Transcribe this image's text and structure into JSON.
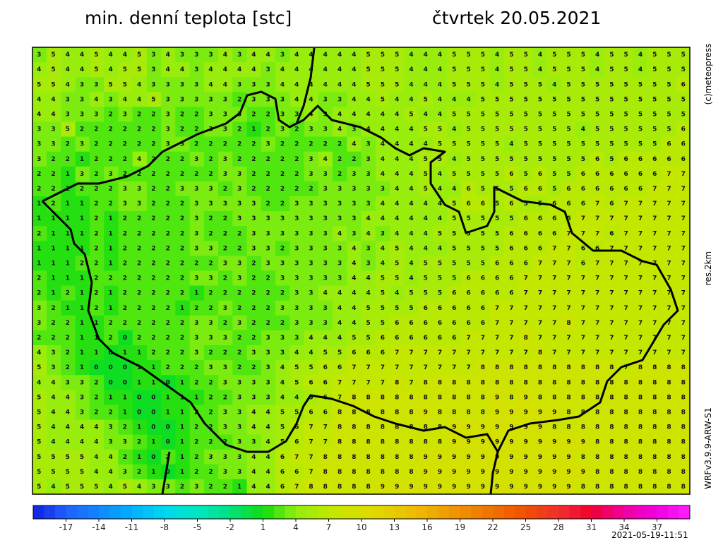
{
  "header": {
    "title": "min. denní teplota [stc]",
    "date": "čtvrtek 20.05.2021"
  },
  "side_labels": {
    "copyright": "(c)meteopress",
    "resolution": "res.2km",
    "model": "WRFv3.9.9-ARW-S1"
  },
  "footer": {
    "timestamp": "2021-05-19-11:51"
  },
  "grid": {
    "rows": [
      "3544544534333434434444455544455545545554554555",
      "4544545534434444344444455544455545545554554555",
      "5543355433334433344444455544455545554555555556",
      "4433434453333323334433445445444555555555555555",
      "4433323223223332233434444454455555555555555555",
      "3352222223223321232334344445545555555545555556",
      "3323222223322222322222434444555554555555555566",
      "3221222422232322222342234445545555555556566666",
      "2213232222222332222332334445455556565566666677",
      "2212223322333232222233333445446555665666666777",
      "1211223322233333223333334444456656556667677777",
      "1111212222232233333333344444455555666677777777",
      "2111212222232223333334343444555556666777677777",
      "1111212222233223323333434544455556667766777777",
      "1112212222222332333333434545555566677767777777",
      "2111222222233232233333445545556666777777777777",
      "2121212222212222223344445455566666777777777777",
      "3211212222122322233334455556666677777777777777",
      "3221122222233232223334455666666677777877777777",
      "2221120222233322333444556666667777877777777777",
      "4321101122232223334455666777777777787777777777",
      "5321000112223322345566777777777888888888878888",
      "4433200110122333345667777878888888888888888888",
      "5443211001112233344567888888888898988888888888",
      "5443221001122334455668888889888899999888888888",
      "5444432100122334456778888888899999998888888888",
      "5444433210122233456778888888899999999998888888",
      "5555442102123334467788888889999999999988888888",
      "5555443210122334466788888889999999999998888888",
      "5455545433232214467888889999999999999988888888"
    ]
  },
  "colorbar": {
    "min": -20,
    "max": 40,
    "ticks": [
      -17,
      -14,
      -11,
      -8,
      -5,
      -2,
      1,
      4,
      7,
      10,
      13,
      16,
      19,
      22,
      25,
      28,
      31,
      34,
      37
    ],
    "stops": [
      [
        -20,
        "#1020e0"
      ],
      [
        -17,
        "#2060ff"
      ],
      [
        -11,
        "#00b0ff"
      ],
      [
        -8,
        "#00d8f0"
      ],
      [
        -5,
        "#00e8c0"
      ],
      [
        -2,
        "#00e080"
      ],
      [
        1,
        "#10dd10"
      ],
      [
        4,
        "#90ee10"
      ],
      [
        7,
        "#c0e800"
      ],
      [
        10,
        "#d8e000"
      ],
      [
        13,
        "#e8cc00"
      ],
      [
        16,
        "#f0b000"
      ],
      [
        19,
        "#f09000"
      ],
      [
        22,
        "#f07000"
      ],
      [
        25,
        "#f05000"
      ],
      [
        28,
        "#f03030"
      ],
      [
        31,
        "#f00030"
      ],
      [
        34,
        "#f000a0"
      ],
      [
        37,
        "#f000e0"
      ],
      [
        40,
        "#ff20ff"
      ]
    ]
  }
}
